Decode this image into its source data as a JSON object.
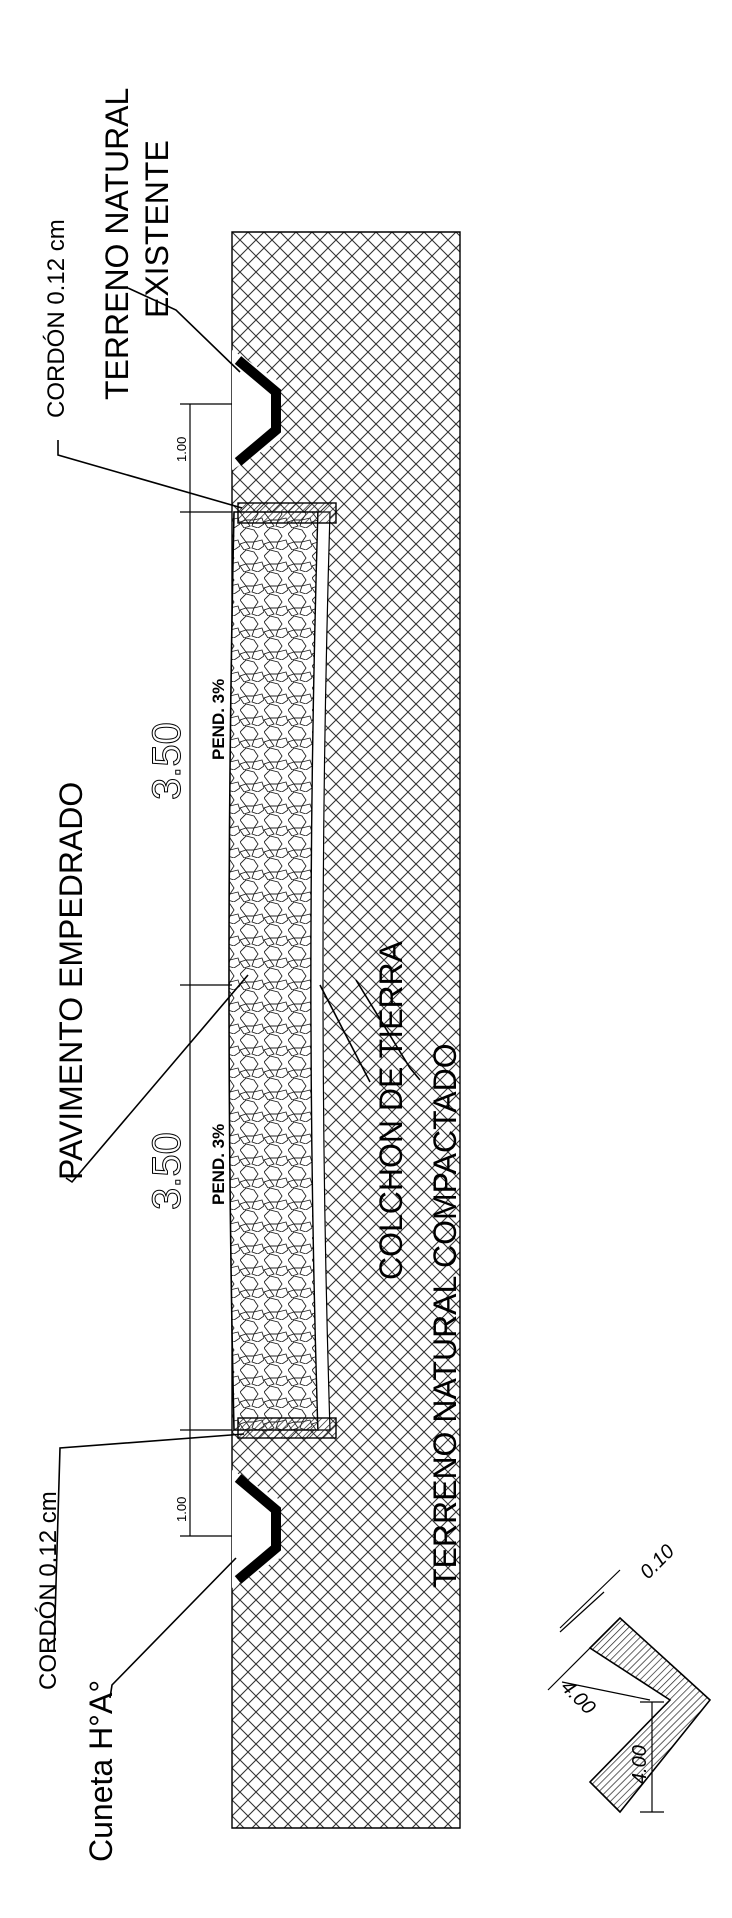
{
  "labels": {
    "terreno_natural": "TERRENO NATURAL",
    "existente": "EXISTENTE",
    "cordon_top": "CORDÓN 0.12 cm",
    "cordon_bottom": "CORDÓN 0.12 cm",
    "pavimento": "PAVIMENTO EMPEDRADO",
    "colchon": "COLCHON DE TIERRA",
    "terreno_compactado": "TERRENO NATURAL COMPACTADO",
    "cuneta": "Cuneta H°A°"
  },
  "dimensions": {
    "lane_top": "3.50",
    "lane_bottom": "3.50",
    "slope_top": "PEND. 3%",
    "slope_bottom": "PEND. 3%",
    "shoulder_top": "1.00",
    "shoulder_bottom": "1.00",
    "detail_thickness": "0.10",
    "detail_side": "4.00",
    "detail_side2": "4.00"
  },
  "colors": {
    "ink": "#000000",
    "hatch": "#333333",
    "background": "#ffffff"
  }
}
